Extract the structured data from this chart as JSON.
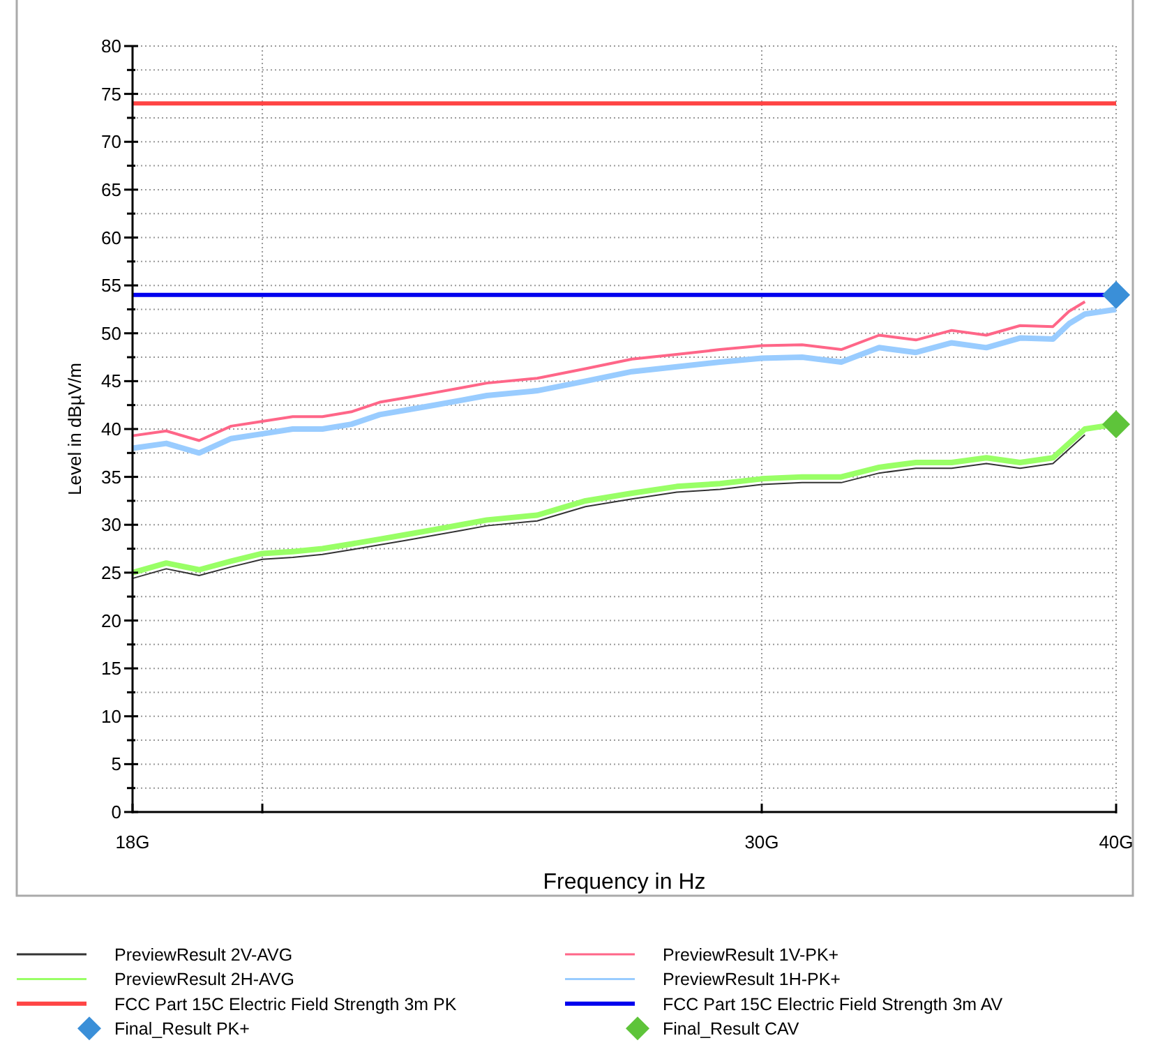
{
  "chart_data": {
    "type": "line",
    "xlabel": "Frequency in Hz",
    "ylabel": "Level in dBµV/m",
    "log": "x",
    "xlim": [
      18,
      40
    ],
    "xticks": [
      {
        "value": 18,
        "label": "18G"
      },
      {
        "value": 20,
        "label": null
      },
      {
        "value": 30,
        "label": "30G"
      },
      {
        "value": 40,
        "label": "40G"
      }
    ],
    "ylim": [
      0,
      80
    ],
    "yticks": [
      0,
      {
        "value": 2.5,
        "label": null
      },
      5,
      {
        "value": 7.5,
        "label": null
      },
      10,
      {
        "value": 12.5,
        "label": null
      },
      15,
      {
        "value": 17.5,
        "label": null
      },
      20,
      {
        "value": 22.5,
        "label": null
      },
      25,
      {
        "value": 27.5,
        "label": null
      },
      30,
      {
        "value": 32.5,
        "label": null
      },
      35,
      {
        "value": 37.5,
        "label": null
      },
      40,
      {
        "value": 42.5,
        "label": null
      },
      45,
      {
        "value": 47.5,
        "label": null
      },
      50,
      {
        "value": 52.5,
        "label": null
      },
      55,
      {
        "value": 57.5,
        "label": null
      },
      60,
      {
        "value": 62.5,
        "label": null
      },
      65,
      {
        "value": 67.5,
        "label": null
      },
      70,
      {
        "value": 72.5,
        "label": null
      },
      75,
      {
        "value": 77.5,
        "label": null
      },
      80
    ],
    "grid": true,
    "legend": "bottom",
    "line_style": "solid",
    "x": [
      18,
      18.5,
      19,
      19.5,
      20,
      20.5,
      21,
      21.5,
      22,
      22.5,
      23,
      23.5,
      24,
      25,
      26,
      27,
      28,
      29,
      30,
      31,
      32,
      33,
      34,
      35,
      36,
      37,
      38,
      38.5,
      39,
      40
    ],
    "series": [
      {
        "name": "PreviewResult 1V-PK+",
        "color": "#ff6688",
        "values": [
          39.3,
          39.8,
          38.8,
          40.3,
          40.8,
          41.3,
          41.3,
          41.8,
          42.8,
          43.3,
          43.8,
          44.3,
          44.8,
          45.3,
          46.3,
          47.3,
          47.8,
          48.3,
          48.7,
          48.8,
          48.3,
          49.8,
          49.3,
          50.3,
          49.8,
          50.8,
          50.7,
          52.3,
          53.3,
          null
        ]
      },
      {
        "name": "PreviewResult 1H-PK+",
        "color": "#99ccff",
        "values": [
          38,
          38.5,
          37.5,
          39,
          39.5,
          40,
          40,
          40.5,
          41.5,
          42,
          42.5,
          43,
          43.5,
          44,
          45,
          46,
          46.5,
          47,
          47.4,
          47.5,
          47,
          48.5,
          48,
          49,
          48.5,
          49.5,
          49.4,
          51,
          52,
          52.5
        ]
      },
      {
        "name": "PreviewResult 2H-AVG",
        "color": "#99ff66",
        "values": [
          25,
          26,
          25.3,
          26.2,
          27,
          27.2,
          27.5,
          28,
          28.5,
          29,
          29.5,
          30,
          30.5,
          31,
          32.5,
          33.3,
          34,
          34.3,
          34.8,
          35,
          35,
          36,
          36.5,
          36.5,
          37,
          36.5,
          37,
          38.5,
          40,
          40.5
        ]
      },
      {
        "name": "PreviewResult 2V-AVG",
        "color": "#333333",
        "values": [
          24.4,
          25.4,
          24.7,
          25.6,
          26.4,
          26.6,
          26.9,
          27.4,
          27.9,
          28.4,
          28.9,
          29.4,
          29.9,
          30.4,
          31.9,
          32.7,
          33.4,
          33.7,
          34.2,
          34.4,
          34.4,
          35.4,
          35.9,
          35.9,
          36.4,
          35.9,
          36.4,
          37.9,
          39.4,
          null
        ]
      },
      {
        "name": "Final_Result PK+",
        "type": "scatter",
        "marker": "diamond",
        "color": "#3a8fd8",
        "x": [
          40
        ],
        "values": [
          54
        ]
      },
      {
        "name": "Final_Result CAV",
        "type": "scatter",
        "marker": "diamond",
        "color": "#5ec43a",
        "x": [
          40
        ],
        "values": [
          40.5
        ]
      }
    ],
    "ref_lines": [
      {
        "axis": "y",
        "value": 74,
        "label": "FCC Part 15C Electric Field Strength 3m PK",
        "color": "#ff4444"
      },
      {
        "axis": "y",
        "value": 54,
        "label": "FCC Part 15C Electric Field Strength 3m AV",
        "color": "#0000ee"
      }
    ]
  }
}
